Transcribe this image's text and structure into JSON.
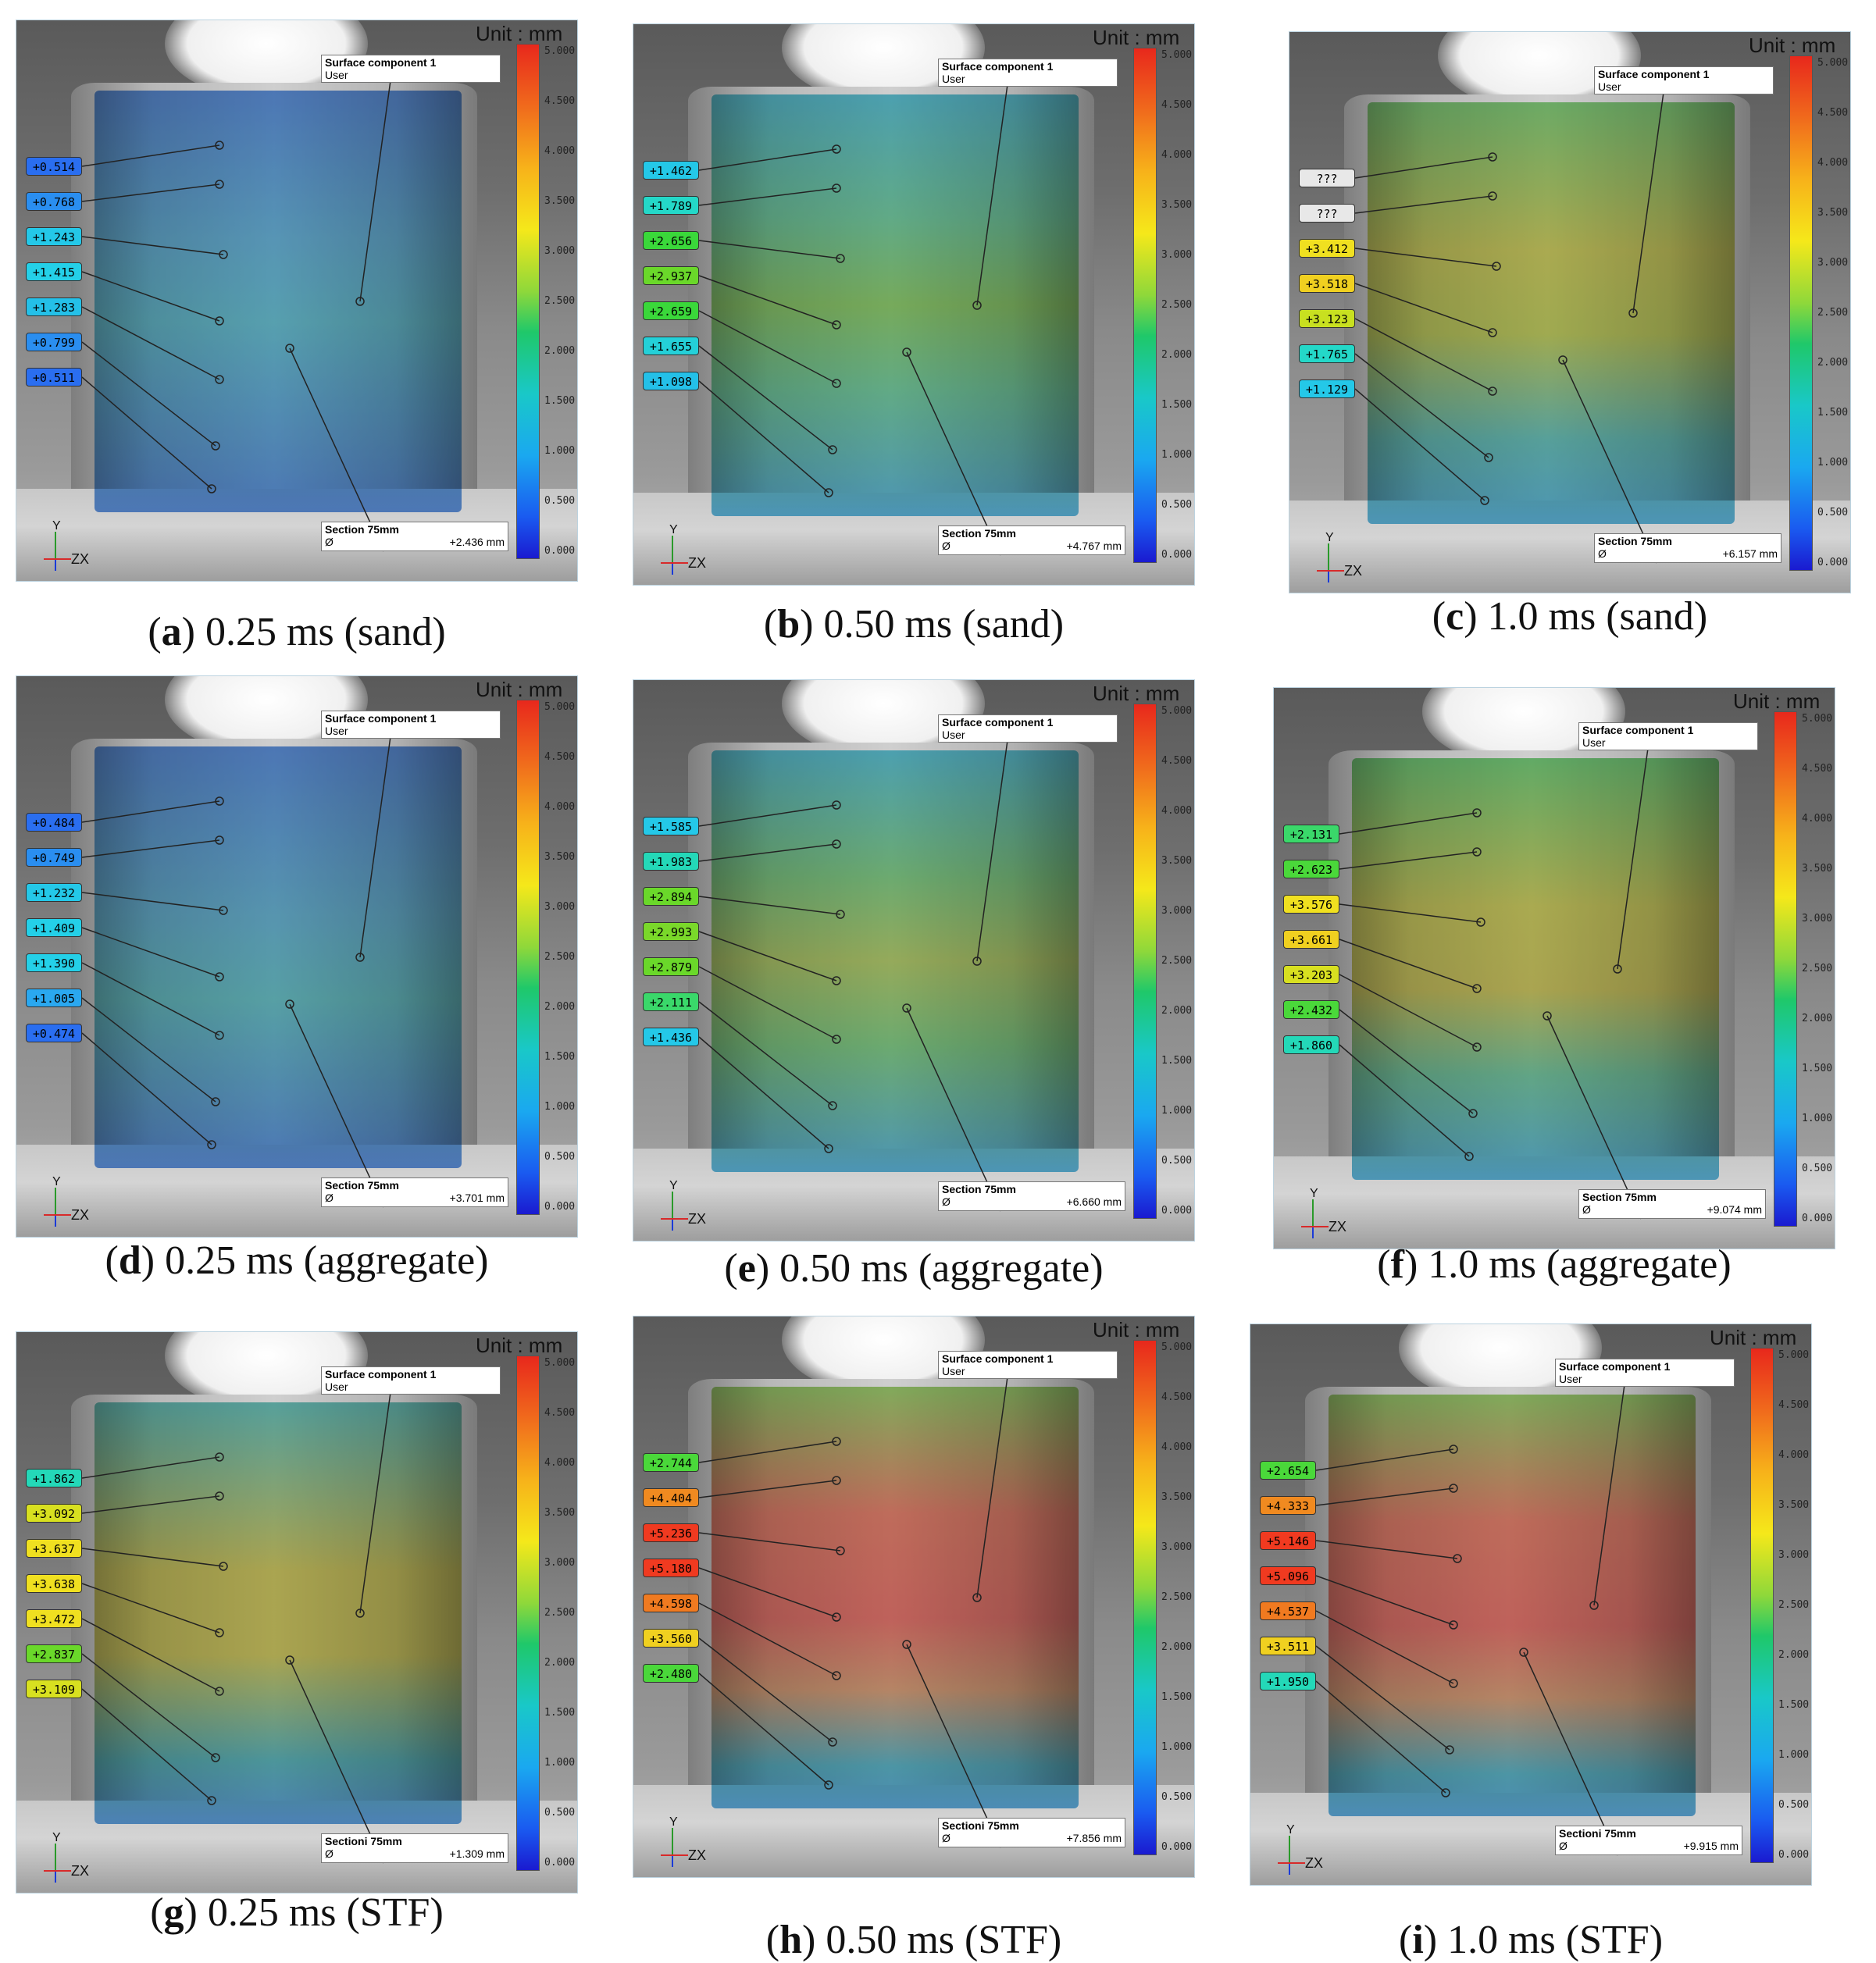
{
  "unit_label": "Unit : mm",
  "surface_title": "Surface component 1",
  "surface_sub": "User",
  "colorbar_ticks": [
    "5.000",
    "4.500",
    "4.000",
    "3.500",
    "3.000",
    "2.500",
    "2.000",
    "1.500",
    "1.000",
    "0.500",
    "0.000"
  ],
  "axes": {
    "y": "Y",
    "zx": "ZX"
  },
  "panels": [
    {
      "letter": "a",
      "caption": "0.25 ms (sand)",
      "section_label": "Section 75mm",
      "section_value": "+2.436 mm",
      "tags": [
        "+0.514",
        "+0.768",
        "+1.243",
        "+1.415",
        "+1.283",
        "+0.799",
        "+0.511"
      ],
      "tag_colors": [
        "#2a6ef0",
        "#2a8ef0",
        "#24c8e8",
        "#24d0e8",
        "#24c0e8",
        "#2a8ef0",
        "#2a6ef0"
      ],
      "field": "linear-gradient(180deg,#3a7ad8 0%,#4aa8d8 35%,#4ab8d0 55%,#3a7ad8 100%)"
    },
    {
      "letter": "b",
      "caption": "0.50 ms (sand)",
      "section_label": "Section 75mm",
      "section_value": "+4.767 mm",
      "tags": [
        "+1.462",
        "+1.789",
        "+2.656",
        "+2.937",
        "+2.659",
        "+1.655",
        "+1.098"
      ],
      "tag_colors": [
        "#24c8e8",
        "#24d8c8",
        "#3ad83a",
        "#6ad82a",
        "#3ad83a",
        "#24d0d8",
        "#24c0e8"
      ],
      "field": "linear-gradient(180deg,#3ab8d0 0%,#5ac890 30%,#7ac850 50%,#5ac890 70%,#3aa8d8 100%)"
    },
    {
      "letter": "c",
      "caption": "1.0 ms (sand)",
      "section_label": "Section 75mm",
      "section_value": "+6.157 mm",
      "tags": [
        "???",
        "???",
        "+3.412",
        "+3.518",
        "+3.123",
        "+1.765",
        "+1.129"
      ],
      "tag_colors": [
        "#e8e8e8",
        "#e8e8e8",
        "#f0e020",
        "#f0d020",
        "#c8e020",
        "#24d8c8",
        "#24c8e8"
      ],
      "field": "linear-gradient(180deg,#6ac860 0%,#c8c840 35%,#b8c840 55%,#4ab8b0 80%,#3aa8d8 100%)"
    },
    {
      "letter": "d",
      "caption": "0.25 ms (aggregate)",
      "section_label": "Section 75mm",
      "section_value": "+3.701 mm",
      "tags": [
        "+0.484",
        "+0.749",
        "+1.232",
        "+1.409",
        "+1.390",
        "+1.005",
        "+0.474"
      ],
      "tag_colors": [
        "#2a6ef0",
        "#2a8ef0",
        "#24c8e8",
        "#24d0e8",
        "#24d0e8",
        "#2aa8f0",
        "#2a6ef0"
      ],
      "field": "linear-gradient(180deg,#3a7ad8 0%,#4aa8d0 40%,#4ab8c0 60%,#3a7ad8 100%)"
    },
    {
      "letter": "e",
      "caption": "0.50 ms (aggregate)",
      "section_label": "Section 75mm",
      "section_value": "+6.660 mm",
      "tags": [
        "+1.585",
        "+1.983",
        "+2.894",
        "+2.993",
        "+2.879",
        "+2.111",
        "+1.436"
      ],
      "tag_colors": [
        "#24c8e8",
        "#24d8b8",
        "#6ad82a",
        "#7ad82a",
        "#6ad82a",
        "#3ad86a",
        "#24c8e8"
      ],
      "field": "linear-gradient(180deg,#3ab8d0 0%,#6ac870 30%,#a8c850 50%,#6ac870 70%,#3aa8d8 100%)"
    },
    {
      "letter": "f",
      "caption": "1.0 ms (aggregate)",
      "section_label": "Section 75mm",
      "section_value": "+9.074 mm",
      "tags": [
        "+2.131",
        "+2.623",
        "+3.576",
        "+3.661",
        "+3.203",
        "+2.432",
        "+1.860"
      ],
      "tag_colors": [
        "#3ad86a",
        "#4ad83a",
        "#f0e020",
        "#f0d020",
        "#d8e020",
        "#4ad83a",
        "#24d8b8"
      ],
      "field": "linear-gradient(180deg,#5ac860 0%,#c8c840 35%,#c8c040 55%,#5ac090 75%,#3aa8d8 100%)"
    },
    {
      "letter": "g",
      "caption": "0.25 ms (STF)",
      "section_label": "Sectioni 75mm",
      "section_value": "+1.309 mm",
      "tags": [
        "+1.862",
        "+3.092",
        "+3.637",
        "+3.638",
        "+3.472",
        "+2.837",
        "+3.109"
      ],
      "tag_colors": [
        "#24d8b8",
        "#d8e020",
        "#f0e020",
        "#f0e020",
        "#f0e020",
        "#6ad82a",
        "#d8e020"
      ],
      "field": "linear-gradient(180deg,#4ab8b0 0%,#c8c040 40%,#c8c040 60%,#3aa8b0 85%,#3a8ad8 100%)"
    },
    {
      "letter": "h",
      "caption": "0.50 ms (STF)",
      "section_label": "Sectioni 75mm",
      "section_value": "+7.856 mm",
      "tags": [
        "+2.744",
        "+4.404",
        "+5.236",
        "+5.180",
        "+4.598",
        "+3.560",
        "+2.480"
      ],
      "tag_colors": [
        "#4ad83a",
        "#f08a20",
        "#f03a20",
        "#f03a20",
        "#f07a20",
        "#f0d020",
        "#4ad83a"
      ],
      "field": "linear-gradient(180deg,#8ac850 0%,#e86a50 30%,#e85a50 55%,#d89060 72%,#3aa8c0 90%,#3a9ad8 100%)"
    },
    {
      "letter": "i",
      "caption": "1.0 ms (STF)",
      "section_label": "Sectioni 75mm",
      "section_value": "+9.915 mm",
      "tags": [
        "+2.654",
        "+4.333",
        "+5.146",
        "+5.096",
        "+4.537",
        "+3.511",
        "+1.950"
      ],
      "tag_colors": [
        "#4ad83a",
        "#f08a20",
        "#f03a20",
        "#f03a20",
        "#f07a20",
        "#f0d020",
        "#24d8b8"
      ],
      "field": "linear-gradient(180deg,#8ac850 0%,#e86a50 30%,#e85a50 55%,#d89060 72%,#3aa8c0 90%,#3a9ad8 100%)"
    }
  ]
}
